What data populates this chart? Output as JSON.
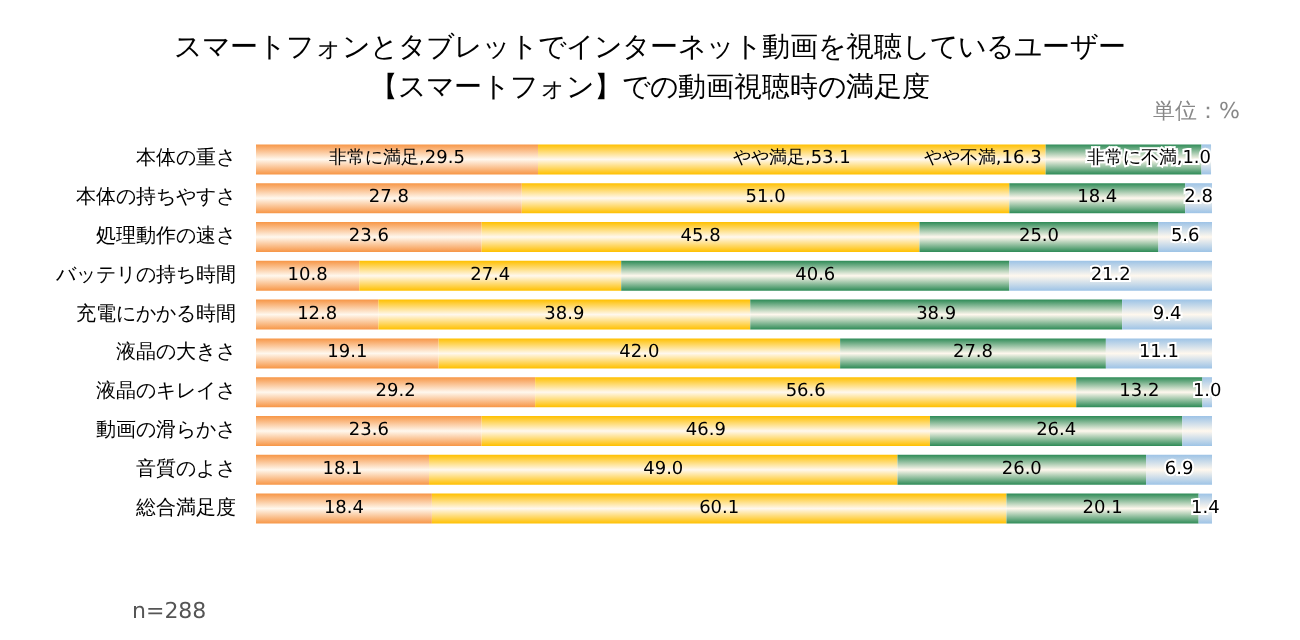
{
  "chart_data": {
    "type": "bar",
    "orientation": "horizontal",
    "stacked": true,
    "title": "スマートフォンとタブレットでインターネット動画を視聴しているユーザー",
    "subtitle": "【スマートフォン】での動画視聴時の満足度",
    "categories": [
      "本体の重さ",
      "本体の持ちやすさ",
      "処理動作の速さ",
      "バッテリの持ち時間",
      "充電にかかる時間",
      "液晶の大きさ",
      "液晶のキレイさ",
      "動画の滑らかさ",
      "音質のよさ",
      "総合満足度"
    ],
    "series": [
      {
        "color": "#f79646",
        "values": [
          29.5,
          27.8,
          23.6,
          10.8,
          12.8,
          19.1,
          29.2,
          23.6,
          18.1,
          18.4
        ],
        "value_labels": [
          "非常に満足,29.5",
          "27.8",
          "23.6",
          "10.8",
          "12.8",
          "19.1",
          "29.2",
          "23.6",
          "18.1",
          "18.4"
        ]
      },
      {
        "color": "#ffc000",
        "values": [
          53.1,
          51.0,
          45.8,
          27.4,
          38.9,
          42.0,
          56.6,
          46.9,
          49.0,
          60.1
        ],
        "value_labels": [
          "やや満足,53.1",
          "51.0",
          "45.8",
          "27.4",
          "38.9",
          "42.0",
          "56.6",
          "46.9",
          "49.0",
          "60.1"
        ]
      },
      {
        "color": "#2e8b57",
        "values": [
          16.3,
          18.4,
          25.0,
          40.6,
          38.9,
          27.8,
          13.2,
          26.4,
          26.0,
          20.1
        ],
        "value_labels": [
          "やや不満,16.3",
          "18.4",
          "25.0",
          "40.6",
          "38.9",
          "27.8",
          "13.2",
          "26.4",
          "26.0",
          "20.1"
        ]
      },
      {
        "color": "#9dc3e6",
        "values": [
          1.0,
          2.8,
          5.6,
          21.2,
          9.4,
          11.1,
          1.0,
          3.1,
          6.9,
          1.4
        ],
        "value_labels": [
          "非常に不満,1.0",
          "2.8",
          "5.6",
          "21.2",
          "9.4",
          "11.1",
          "1.0",
          null,
          "6.9",
          "1.4"
        ]
      }
    ],
    "xlim": [
      0,
      100
    ],
    "tick_labels": "y",
    "annotations": [
      "単位：%",
      "n=288"
    ]
  }
}
